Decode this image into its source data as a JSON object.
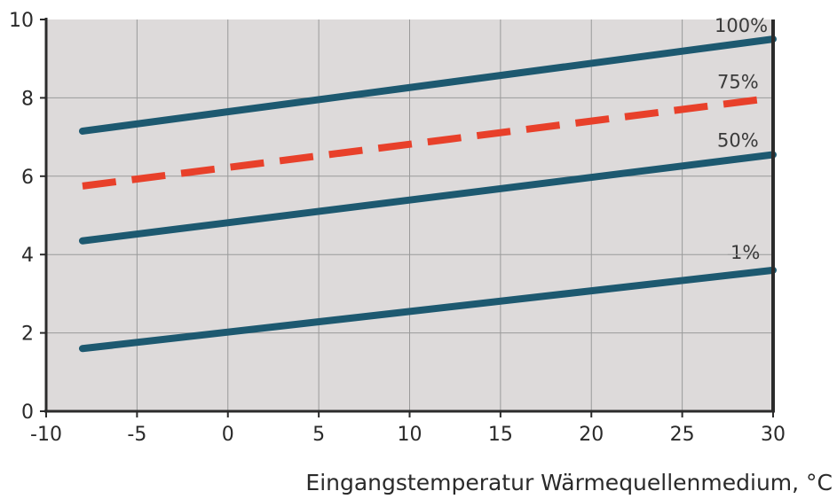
{
  "chart_data": {
    "type": "line",
    "title": "",
    "xlabel": "Eingangstemperatur Wärmequellenmedium, °C",
    "ylabel": "",
    "xlim": [
      -10,
      30
    ],
    "ylim": [
      0,
      10
    ],
    "x_ticks": [
      "-10",
      "-5",
      "0",
      "5",
      "10",
      "15",
      "20",
      "25",
      "30"
    ],
    "y_ticks": [
      "0",
      "2",
      "4",
      "6",
      "8",
      "10"
    ],
    "grid": true,
    "colors": {
      "plot_background": "#dddada",
      "grid": "#9a9a9a",
      "axis": "#2b2b2b",
      "series_solid": "#1d5970",
      "series_dashed": "#e8402a"
    },
    "series": [
      {
        "name": "100%",
        "style": "solid",
        "x": [
          -8,
          30
        ],
        "y": [
          7.15,
          9.5
        ]
      },
      {
        "name": "75%",
        "style": "dashed",
        "x": [
          -8,
          30
        ],
        "y": [
          5.75,
          8.0
        ]
      },
      {
        "name": "50%",
        "style": "solid",
        "x": [
          -8,
          30
        ],
        "y": [
          4.35,
          6.55
        ]
      },
      {
        "name": "1%",
        "style": "solid",
        "x": [
          -8,
          30
        ],
        "y": [
          1.6,
          3.6
        ]
      }
    ]
  }
}
